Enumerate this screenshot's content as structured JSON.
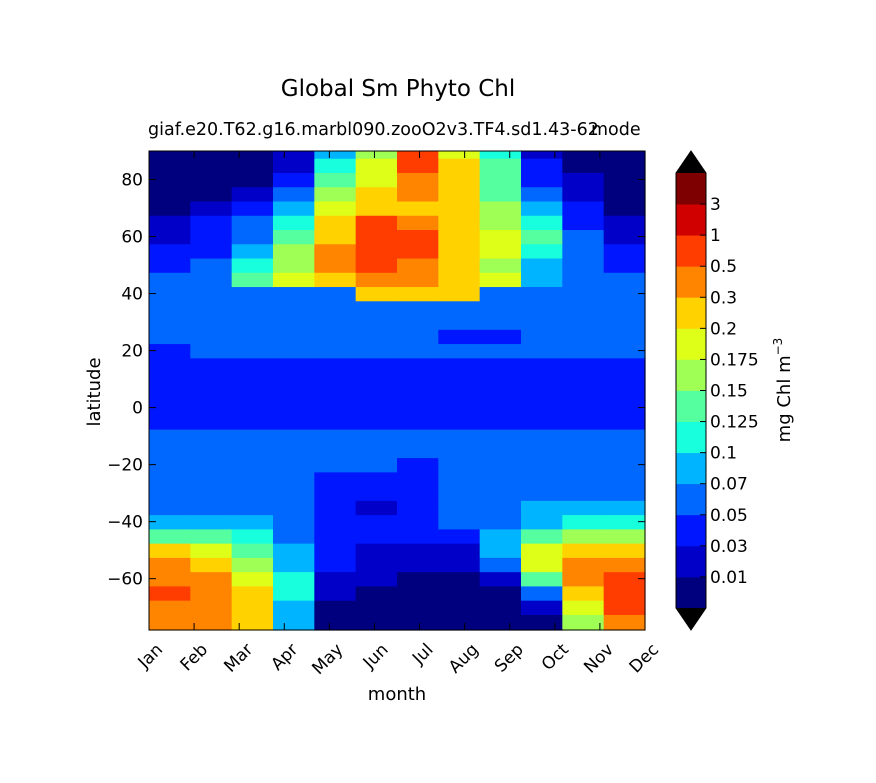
{
  "chart_data": {
    "type": "heatmap",
    "title": "Global Sm Phyto Chl",
    "subtitle_left": "giaf.e20.T62.g16.marbl090.zooO2v3.TF4.sd1.43-62",
    "subtitle_right": "mode",
    "xlabel": "month",
    "ylabel": "latitude",
    "x_tick_labels": [
      "Jan",
      "Feb",
      "Mar",
      "Apr",
      "May",
      "Jun",
      "Jul",
      "Aug",
      "Sep",
      "Oct",
      "Nov",
      "Dec"
    ],
    "y_tick_values": [
      80,
      60,
      40,
      20,
      0,
      -20,
      -40,
      -60
    ],
    "y_tick_labels": [
      "80",
      "60",
      "40",
      "20",
      "0",
      "−20",
      "−40",
      "−60"
    ],
    "ylim": [
      -78,
      90
    ],
    "x": [
      0,
      1,
      2,
      3,
      4,
      5,
      6,
      7,
      8,
      9,
      10,
      11
    ],
    "y": [
      -75,
      -70,
      -65,
      -60,
      -55,
      -50,
      -45,
      -40,
      -35,
      -30,
      -25,
      -20,
      -15,
      -10,
      -5,
      0,
      5,
      10,
      15,
      20,
      25,
      30,
      35,
      40,
      45,
      50,
      55,
      60,
      65,
      70,
      75,
      80,
      85,
      90
    ],
    "z_levels": [
      [
        10,
        10,
        9,
        4,
        0,
        0,
        0,
        0,
        0,
        0,
        7,
        10
      ],
      [
        10,
        10,
        9,
        4,
        0,
        0,
        0,
        0,
        0,
        1,
        8,
        11
      ],
      [
        11,
        10,
        9,
        5,
        1,
        0,
        0,
        0,
        0,
        3,
        9,
        11
      ],
      [
        10,
        10,
        8,
        5,
        1,
        1,
        0,
        0,
        1,
        6,
        10,
        11
      ],
      [
        10,
        9,
        7,
        4,
        2,
        1,
        1,
        1,
        3,
        8,
        10,
        10
      ],
      [
        9,
        8,
        6,
        4,
        2,
        1,
        1,
        1,
        4,
        8,
        9,
        9
      ],
      [
        6,
        6,
        5,
        3,
        2,
        2,
        2,
        2,
        4,
        6,
        7,
        7
      ],
      [
        4,
        4,
        4,
        3,
        2,
        2,
        2,
        3,
        3,
        4,
        5,
        5
      ],
      [
        3,
        3,
        3,
        3,
        2,
        1,
        2,
        3,
        3,
        4,
        4,
        4
      ],
      [
        3,
        3,
        3,
        3,
        2,
        2,
        2,
        3,
        3,
        3,
        3,
        3
      ],
      [
        3,
        3,
        3,
        3,
        2,
        2,
        2,
        3,
        3,
        3,
        3,
        3
      ],
      [
        3,
        3,
        3,
        3,
        3,
        3,
        2,
        3,
        3,
        3,
        3,
        3
      ],
      [
        3,
        3,
        3,
        3,
        3,
        3,
        3,
        3,
        3,
        3,
        3,
        3
      ],
      [
        3,
        3,
        3,
        3,
        3,
        3,
        3,
        3,
        3,
        3,
        3,
        3
      ],
      [
        2,
        2,
        2,
        2,
        2,
        2,
        2,
        2,
        2,
        2,
        2,
        2
      ],
      [
        2,
        2,
        2,
        2,
        2,
        2,
        2,
        2,
        2,
        2,
        2,
        2
      ],
      [
        2,
        2,
        2,
        2,
        2,
        2,
        2,
        2,
        2,
        2,
        2,
        2
      ],
      [
        2,
        2,
        2,
        2,
        2,
        2,
        2,
        2,
        2,
        2,
        2,
        2
      ],
      [
        2,
        2,
        2,
        2,
        2,
        2,
        2,
        2,
        2,
        2,
        2,
        2
      ],
      [
        2,
        3,
        3,
        3,
        3,
        3,
        3,
        3,
        3,
        3,
        3,
        3
      ],
      [
        3,
        3,
        3,
        3,
        3,
        3,
        3,
        2,
        2,
        3,
        3,
        3
      ],
      [
        3,
        3,
        3,
        3,
        3,
        3,
        3,
        3,
        3,
        3,
        3,
        3
      ],
      [
        3,
        3,
        3,
        3,
        3,
        3,
        3,
        3,
        3,
        3,
        3,
        3
      ],
      [
        3,
        3,
        3,
        3,
        3,
        9,
        9,
        9,
        3,
        3,
        3,
        3
      ],
      [
        3,
        3,
        6,
        8,
        9,
        10,
        10,
        9,
        8,
        4,
        3,
        3
      ],
      [
        2,
        3,
        5,
        7,
        10,
        11,
        10,
        9,
        7,
        4,
        3,
        2
      ],
      [
        2,
        2,
        4,
        7,
        10,
        11,
        11,
        9,
        8,
        5,
        3,
        2
      ],
      [
        1,
        2,
        3,
        6,
        9,
        11,
        11,
        9,
        8,
        6,
        3,
        1
      ],
      [
        1,
        2,
        3,
        5,
        9,
        11,
        10,
        9,
        7,
        5,
        2,
        1
      ],
      [
        0,
        1,
        2,
        4,
        8,
        9,
        9,
        9,
        7,
        4,
        2,
        0
      ],
      [
        0,
        0,
        1,
        3,
        7,
        9,
        10,
        9,
        6,
        3,
        1,
        0
      ],
      [
        0,
        0,
        0,
        2,
        6,
        8,
        10,
        9,
        6,
        2,
        1,
        0
      ],
      [
        0,
        0,
        0,
        1,
        5,
        8,
        11,
        9,
        6,
        2,
        0,
        0
      ],
      [
        0,
        0,
        0,
        1,
        4,
        7,
        11,
        8,
        5,
        1,
        0,
        0
      ]
    ],
    "colorbar": {
      "label": "mg Chl m",
      "label_superscript": "−3",
      "tick_labels": [
        "0.01",
        "0.03",
        "0.05",
        "0.07",
        "0.1",
        "0.125",
        "0.15",
        "0.175",
        "0.2",
        "0.3",
        "0.5",
        "1",
        "3"
      ],
      "extend": "both",
      "colors": [
        "#00007f",
        "#0000c8",
        "#0016ff",
        "#0068ff",
        "#00b4ff",
        "#18ffdd",
        "#55ff9f",
        "#9fff55",
        "#ddff18",
        "#ffd200",
        "#ff8500",
        "#ff3d00",
        "#d10000",
        "#7f0000"
      ]
    },
    "grid": false,
    "legend": "none"
  }
}
